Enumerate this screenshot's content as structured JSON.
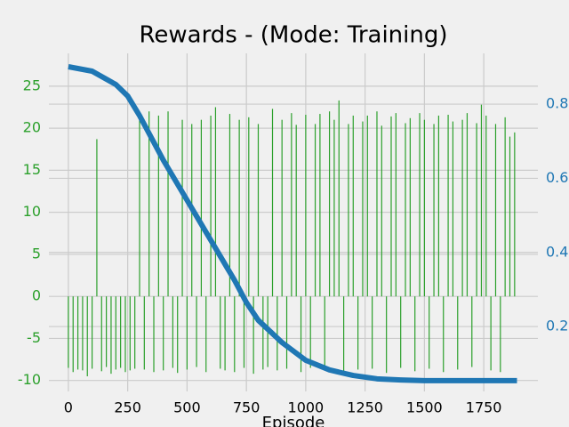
{
  "chart_data": {
    "type": "bar",
    "title": "Rewards - (Mode: Training)",
    "x_label": "Episode",
    "xlim": [
      -82,
      1978
    ],
    "xticks": [
      0,
      250,
      500,
      750,
      1000,
      1250,
      1500,
      1750
    ],
    "ylim": [
      -11.3,
      28.9
    ],
    "yticks": [
      -10,
      -5,
      0,
      5,
      10,
      15,
      20,
      25
    ],
    "y2lim": [
      0.025,
      0.937
    ],
    "y2ticks": [
      0.2,
      0.4,
      0.6,
      0.8
    ],
    "grid": true,
    "y_tick_color": "#2ca02c",
    "y2_tick_color": "#1f77b4",
    "series": [
      {
        "type": "bar",
        "color": "#2ca02c",
        "x": [
          0,
          20,
          40,
          60,
          80,
          100,
          120,
          140,
          160,
          180,
          200,
          220,
          240,
          260,
          280,
          300,
          320,
          340,
          360,
          380,
          400,
          420,
          440,
          460,
          480,
          500,
          520,
          540,
          560,
          580,
          600,
          620,
          640,
          660,
          680,
          700,
          720,
          740,
          760,
          780,
          800,
          820,
          840,
          860,
          880,
          900,
          920,
          940,
          960,
          980,
          1000,
          1020,
          1040,
          1060,
          1080,
          1100,
          1120,
          1140,
          1160,
          1180,
          1200,
          1220,
          1240,
          1260,
          1280,
          1300,
          1320,
          1340,
          1360,
          1380,
          1400,
          1420,
          1440,
          1460,
          1480,
          1500,
          1520,
          1540,
          1560,
          1580,
          1600,
          1620,
          1640,
          1660,
          1680,
          1700,
          1720,
          1740,
          1760,
          1780,
          1800,
          1820,
          1840,
          1860,
          1880
        ],
        "values": [
          -8.5,
          -9,
          -8.7,
          -8.8,
          -9.5,
          -8.6,
          18.7,
          -8.9,
          -8.4,
          -9.2,
          -8.7,
          -8.5,
          -9,
          -8.8,
          -8.6,
          21,
          -8.7,
          22,
          -9,
          21.5,
          -8.8,
          22,
          -8.5,
          -9.1,
          21,
          -8.7,
          20.5,
          -8.4,
          21,
          -9,
          21.5,
          22.5,
          -8.6,
          -8.8,
          21.7,
          -9,
          21,
          -8.5,
          21.3,
          -9.2,
          20.5,
          -8.7,
          -8.4,
          22.3,
          -8.8,
          21,
          -8.6,
          21.8,
          20.4,
          -9,
          21.6,
          -8.5,
          20.5,
          21.7,
          -8.8,
          22,
          21,
          23.3,
          -9,
          20.5,
          21.5,
          -8.7,
          20.8,
          21.5,
          -8.6,
          22,
          20.3,
          -9.1,
          21.4,
          21.8,
          -8.5,
          20.6,
          21.2,
          -8.9,
          21.8,
          21,
          -8.6,
          20.5,
          21.5,
          -9,
          21.6,
          20.8,
          -8.7,
          21,
          21.8,
          -8.4,
          20.6,
          22.8,
          21.5,
          -8.8,
          20.5,
          -9,
          21.3,
          19,
          19.5
        ]
      },
      {
        "type": "line",
        "axis": "y2",
        "color": "#1f77b4",
        "x": [
          0,
          100,
          200,
          250,
          300,
          400,
          500,
          600,
          700,
          750,
          800,
          900,
          1000,
          1100,
          1200,
          1300,
          1400,
          1500,
          1600,
          1700,
          1800,
          1890
        ],
        "values": [
          0.901,
          0.889,
          0.853,
          0.822,
          0.769,
          0.649,
          0.541,
          0.433,
          0.325,
          0.265,
          0.217,
          0.157,
          0.109,
          0.083,
          0.068,
          0.059,
          0.056,
          0.054,
          0.054,
          0.054,
          0.054,
          0.054
        ]
      }
    ]
  }
}
